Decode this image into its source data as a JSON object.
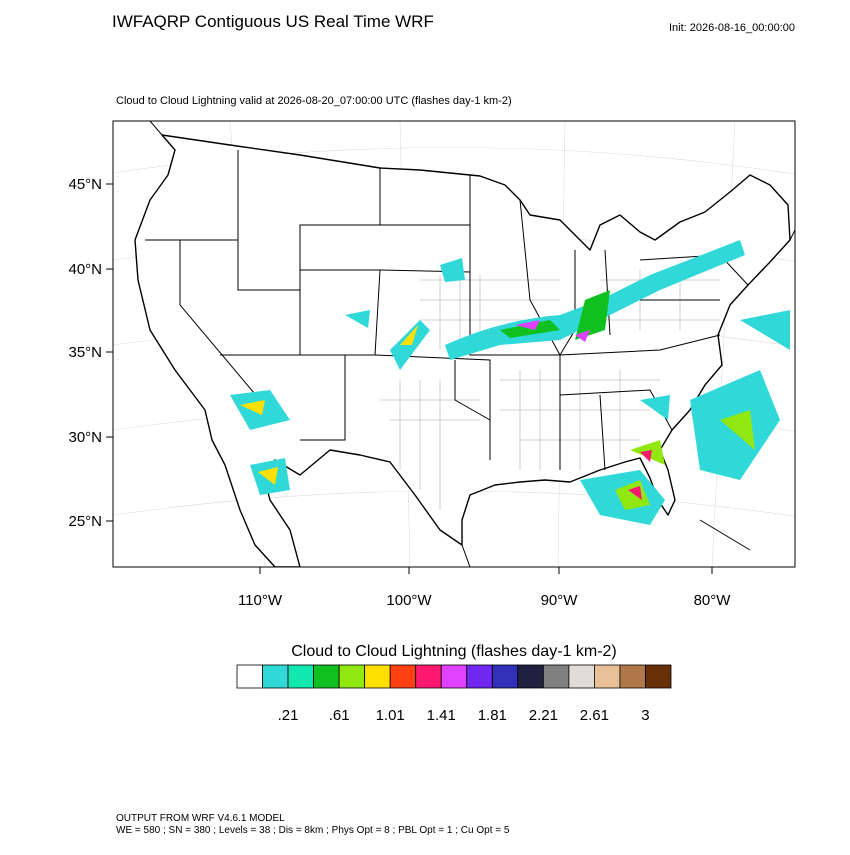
{
  "header": {
    "title": "IWFAQRP Contiguous US Real Time WRF",
    "init": "Init: 2026-08-16_00:00:00",
    "subtitle": "Cloud to Cloud Lightning valid at 2026-08-20_07:00:00 UTC   (flashes day-1 km-2)"
  },
  "map": {
    "lat_labels": [
      "45°N",
      "40°N",
      "35°N",
      "30°N",
      "25°N"
    ],
    "lon_labels": [
      "110°W",
      "100°W",
      "90°W",
      "80°W"
    ]
  },
  "colorbar": {
    "title": "Cloud to Cloud Lightning  (flashes day-1 km-2)",
    "colors": [
      "#ffffff",
      "#30d8d8",
      "#10e8b0",
      "#10c020",
      "#90e810",
      "#ffe000",
      "#ff4010",
      "#ff1870",
      "#e040ff",
      "#7028f0",
      "#3030b8",
      "#202040",
      "#808080",
      "#e0dcd8",
      "#e8c098",
      "#b07848",
      "#683008"
    ],
    "labels": [
      ".21",
      ".61",
      "1.01",
      "1.41",
      "1.81",
      "2.21",
      "2.61",
      "3"
    ]
  },
  "footer": {
    "line1": "OUTPUT FROM WRF V4.6.1 MODEL",
    "line2": "WE = 580 ; SN = 380 ; Levels = 38 ; Dis = 8km ; Phys Opt = 8 ; PBL Opt = 1 ; Cu Opt = 5"
  }
}
